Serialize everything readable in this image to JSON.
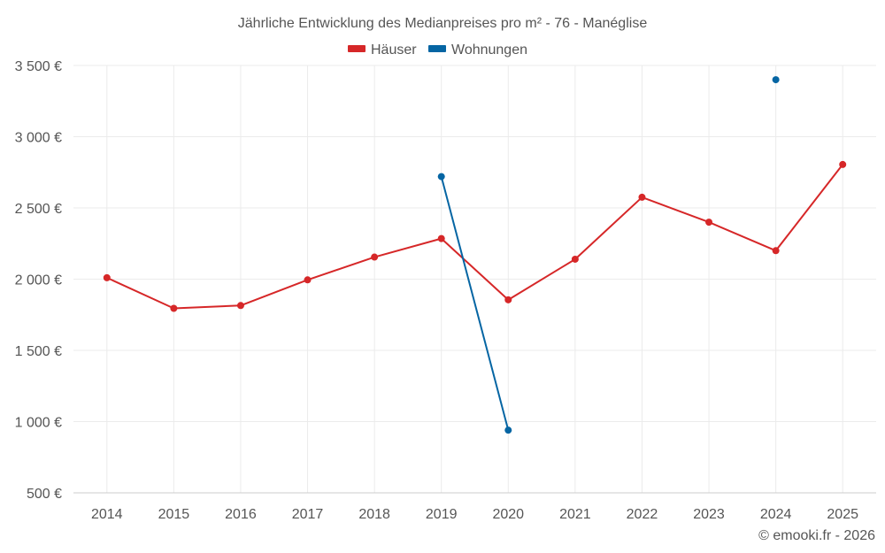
{
  "chart_data": {
    "type": "line",
    "title": "Jährliche Entwicklung des Medianpreises pro m² - 76 - Manéglise",
    "categories": [
      "2014",
      "2015",
      "2016",
      "2017",
      "2018",
      "2019",
      "2020",
      "2021",
      "2022",
      "2023",
      "2024",
      "2025"
    ],
    "series": [
      {
        "name": "Häuser",
        "color": "#d62728",
        "values": [
          2010,
          1795,
          1815,
          1995,
          2155,
          2285,
          1855,
          2140,
          2575,
          2400,
          2200,
          2805
        ]
      },
      {
        "name": "Wohnungen",
        "color": "#0565a3",
        "values": [
          null,
          null,
          null,
          null,
          null,
          2720,
          940,
          null,
          null,
          null,
          3400,
          null
        ]
      }
    ],
    "ylim": [
      500,
      3500
    ],
    "yticks": [
      500,
      1000,
      1500,
      2000,
      2500,
      3000,
      3500
    ],
    "ytick_labels": [
      "500 €",
      "1 000 €",
      "1 500 €",
      "2 000 €",
      "2 500 €",
      "3 000 €",
      "3 500 €"
    ],
    "xlabel": "",
    "ylabel": "",
    "grid": true,
    "legend_position": "top-center"
  },
  "credit": "© emooki.fr - 2026"
}
